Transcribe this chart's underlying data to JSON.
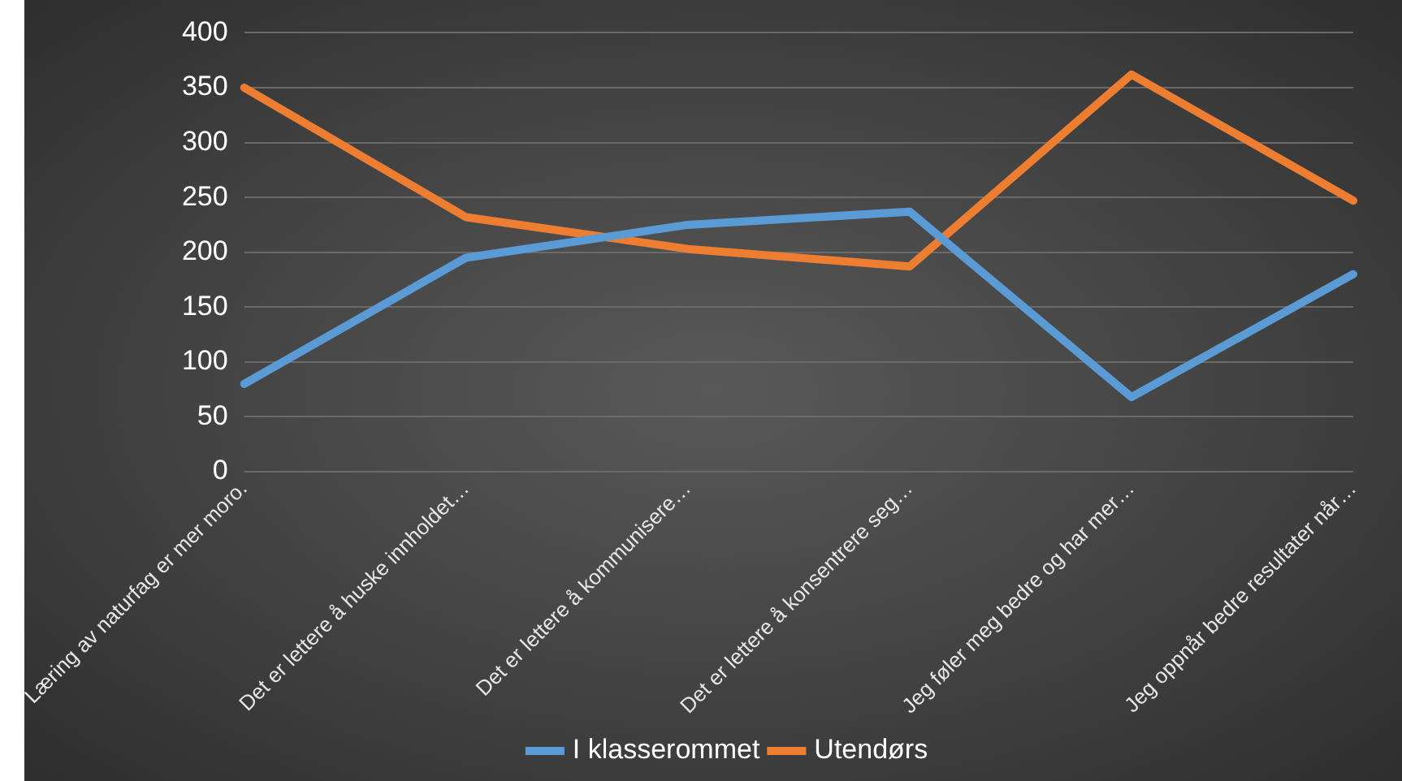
{
  "chart_data": {
    "type": "line",
    "categories": [
      "Læring av naturfag er mer moro.",
      "Det er lettere å huske innholdet…",
      "Det er lettere å kommunisere…",
      "Det er lettere å konsentrere seg…",
      "Jeg føler meg bedre og har mer…",
      "Jeg oppnår bedre resultater når…"
    ],
    "series": [
      {
        "name": "I klasserommet",
        "color": "#5b9bd5",
        "values": [
          80,
          195,
          225,
          237,
          68,
          180
        ]
      },
      {
        "name": "Utendørs",
        "color": "#ed7d31",
        "values": [
          350,
          232,
          203,
          187,
          362,
          247
        ]
      }
    ],
    "ylim": [
      0,
      400
    ],
    "yticks": [
      0,
      50,
      100,
      150,
      200,
      250,
      300,
      350,
      400
    ],
    "grid": "y",
    "legend": "bottom",
    "marker": "none",
    "line_style": "solid"
  }
}
